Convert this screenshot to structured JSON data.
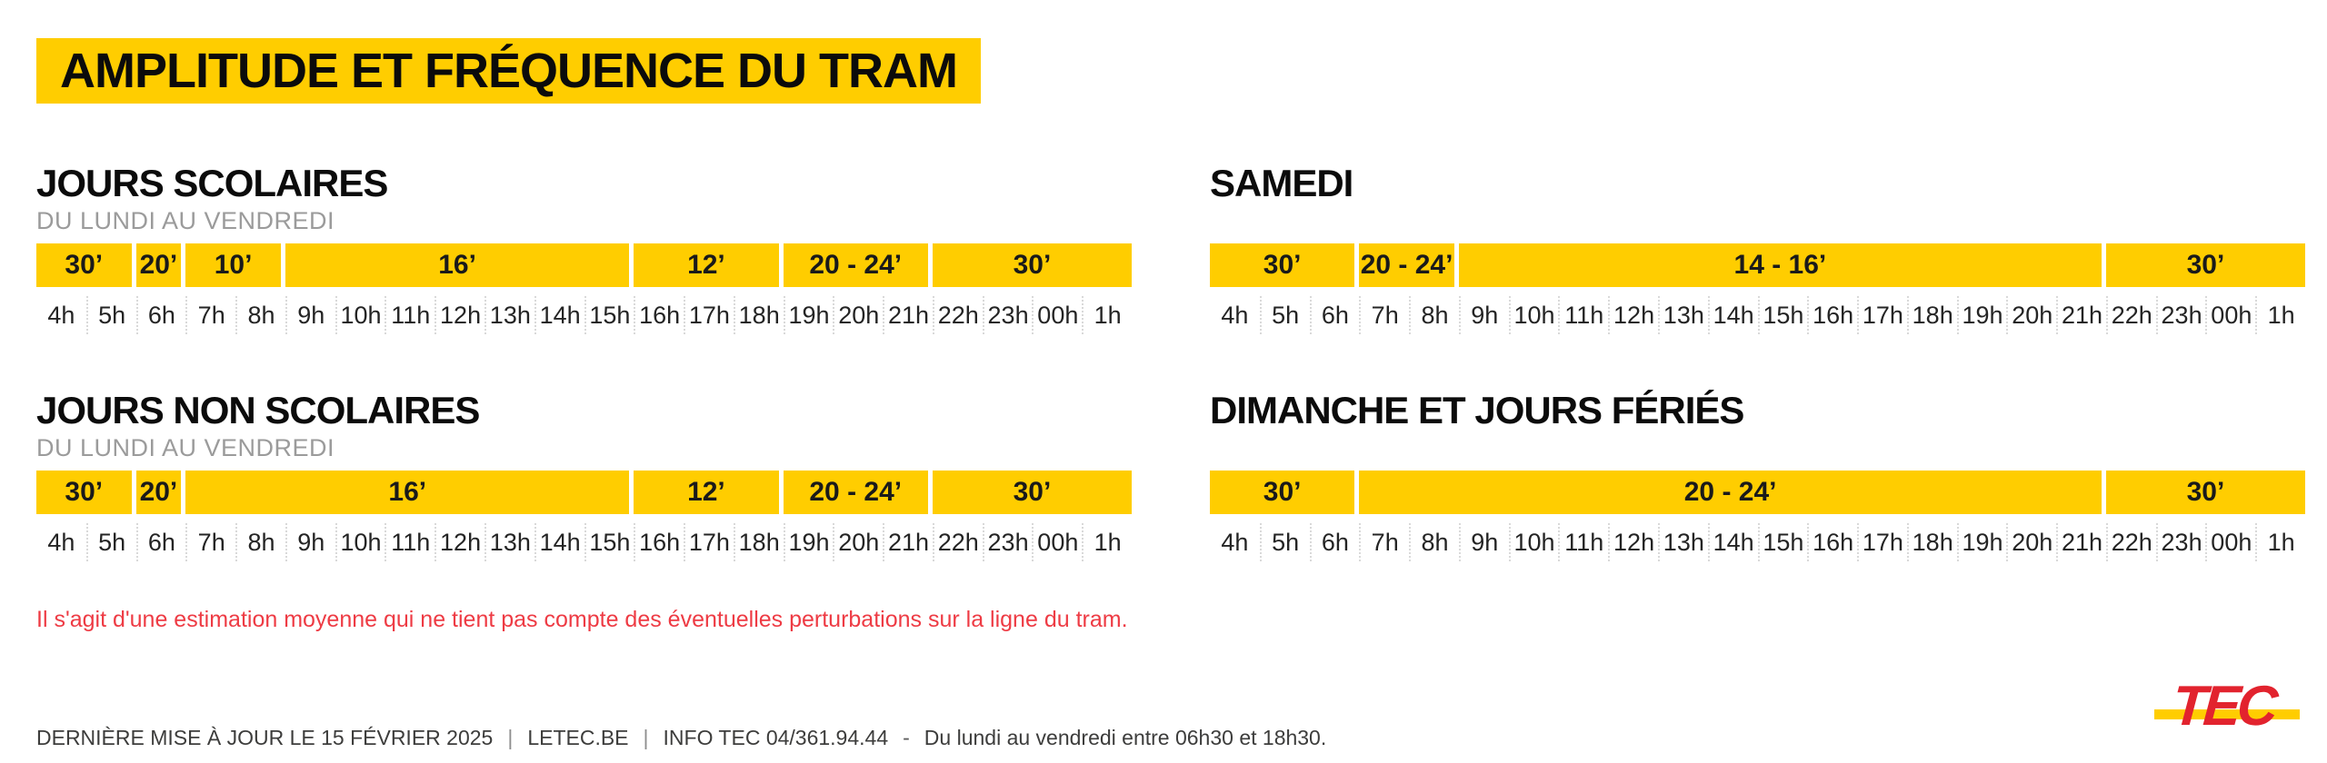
{
  "title": "AMPLITUDE ET FRÉQUENCE DU TRAM",
  "colors": {
    "yellow": "#FFCD00",
    "note_red": "#EE3B44",
    "logo_red": "#E2232E"
  },
  "hours": [
    "4h",
    "5h",
    "6h",
    "7h",
    "8h",
    "9h",
    "10h",
    "11h",
    "12h",
    "13h",
    "14h",
    "15h",
    "16h",
    "17h",
    "18h",
    "19h",
    "20h",
    "21h",
    "22h",
    "23h",
    "00h",
    "1h"
  ],
  "sections": [
    {
      "id": "jours-scolaires",
      "heading": "JOURS SCOLAIRES",
      "subheading": "DU LUNDI AU VENDREDI",
      "segments": [
        {
          "label": "30’",
          "span": 2
        },
        {
          "label": "20’",
          "span": 1
        },
        {
          "label": "10’",
          "span": 2
        },
        {
          "label": "16’",
          "span": 7
        },
        {
          "label": "12’",
          "span": 3
        },
        {
          "label": "20 - 24’",
          "span": 3
        },
        {
          "label": "30’",
          "span": 4
        }
      ]
    },
    {
      "id": "jours-non-scolaires",
      "heading": "JOURS NON SCOLAIRES",
      "subheading": "DU LUNDI AU VENDREDI",
      "segments": [
        {
          "label": "30’",
          "span": 2
        },
        {
          "label": "20’",
          "span": 1
        },
        {
          "label": "16’",
          "span": 9
        },
        {
          "label": "12’",
          "span": 3
        },
        {
          "label": "20 - 24’",
          "span": 3
        },
        {
          "label": "30’",
          "span": 4
        }
      ]
    },
    {
      "id": "samedi",
      "heading": "SAMEDI",
      "subheading": "",
      "segments": [
        {
          "label": "30’",
          "span": 3
        },
        {
          "label": "20 - 24’",
          "span": 2
        },
        {
          "label": "14 - 16’",
          "span": 13
        },
        {
          "label": "30’",
          "span": 4
        }
      ]
    },
    {
      "id": "dimanche-et-jours-feries",
      "heading": "DIMANCHE ET JOURS FÉRIÉS",
      "subheading": "",
      "segments": [
        {
          "label": "30’",
          "span": 3
        },
        {
          "label": "20 - 24’",
          "span": 15
        },
        {
          "label": "30’",
          "span": 4
        }
      ]
    }
  ],
  "note": "Il s'agit d'une estimation moyenne qui ne tient pas compte des éventuelles perturbations sur la ligne du tram.",
  "footer": {
    "updated": "DERNIÈRE MISE À JOUR LE 15 FÉVRIER 2025",
    "separator": "|",
    "site": "LETEC.BE",
    "info": "INFO TEC 04/361.94.44",
    "dash": "-",
    "hours_note": "Du lundi au vendredi entre 06h30 et 18h30."
  },
  "logo": {
    "text": "TEC"
  }
}
